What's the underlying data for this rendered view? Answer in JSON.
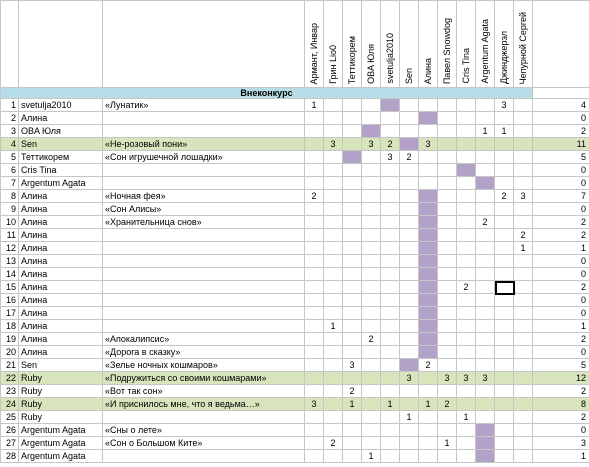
{
  "columns": [
    "Армант, Инвар",
    "Грин Lio0",
    "Теттикорем",
    "OBA Юля",
    "svetulja2010",
    "Sen",
    "Алина",
    "Павел Snowdog",
    "Cris Tina",
    "Argentum Agata",
    "Джинджерэл",
    "Чепурной Сергей"
  ],
  "section": "Внеконкурс",
  "rows": [
    {
      "num": 1,
      "name": "svetulja2010",
      "title": "«Лунатик»",
      "votes": [
        1,
        null,
        null,
        null,
        null,
        null,
        null,
        null,
        null,
        null,
        3,
        null
      ],
      "total": 4,
      "own": 4,
      "green": false
    },
    {
      "num": 2,
      "name": "Алина",
      "title": null,
      "votes": [
        null,
        null,
        null,
        null,
        null,
        null,
        null,
        null,
        null,
        null,
        null,
        null
      ],
      "total": 0,
      "own": 6,
      "green": false
    },
    {
      "num": 3,
      "name": "OBA Юля",
      "title": null,
      "votes": [
        null,
        null,
        null,
        null,
        null,
        null,
        null,
        null,
        null,
        1,
        1,
        null
      ],
      "total": 2,
      "own": 3,
      "green": false
    },
    {
      "num": 4,
      "name": "Sen",
      "title": "«Не-розовый пони»",
      "votes": [
        null,
        3,
        null,
        3,
        2,
        null,
        3,
        null,
        null,
        null,
        null,
        null
      ],
      "total": 11,
      "own": 5,
      "green": true
    },
    {
      "num": 5,
      "name": "Теттикорем",
      "title": "«Сон игрушечной лошадки»",
      "votes": [
        null,
        null,
        null,
        null,
        3,
        2,
        null,
        null,
        null,
        null,
        null,
        null
      ],
      "total": 5,
      "own": 2,
      "green": false
    },
    {
      "num": 6,
      "name": "Cris Tina",
      "title": null,
      "votes": [
        null,
        null,
        null,
        null,
        null,
        null,
        null,
        null,
        null,
        null,
        null,
        null
      ],
      "total": 0,
      "own": 8,
      "green": false
    },
    {
      "num": 7,
      "name": "Argentum Agata",
      "title": null,
      "votes": [
        null,
        null,
        null,
        null,
        null,
        null,
        null,
        null,
        null,
        null,
        null,
        null
      ],
      "total": 0,
      "own": 9,
      "green": false
    },
    {
      "num": 8,
      "name": "Алина",
      "title": "«Ночная фея»",
      "votes": [
        2,
        null,
        null,
        null,
        null,
        null,
        null,
        null,
        null,
        null,
        2,
        3
      ],
      "total": 7,
      "own": 6,
      "green": false
    },
    {
      "num": 9,
      "name": "Алина",
      "title": "«Сон Алисы»",
      "votes": [
        null,
        null,
        null,
        null,
        null,
        null,
        null,
        null,
        null,
        null,
        null,
        null
      ],
      "total": 0,
      "own": 6,
      "green": false
    },
    {
      "num": 10,
      "name": "Алина",
      "title": "«Хранительница снов»",
      "votes": [
        null,
        null,
        null,
        null,
        null,
        null,
        null,
        null,
        null,
        2,
        null,
        null
      ],
      "total": 2,
      "own": 6,
      "green": false
    },
    {
      "num": 11,
      "name": "Алина",
      "title": null,
      "votes": [
        null,
        null,
        null,
        null,
        null,
        null,
        null,
        null,
        null,
        null,
        null,
        2
      ],
      "total": 2,
      "own": 6,
      "green": false
    },
    {
      "num": 12,
      "name": "Алина",
      "title": null,
      "votes": [
        null,
        null,
        null,
        null,
        null,
        null,
        null,
        null,
        null,
        null,
        null,
        1
      ],
      "total": 1,
      "own": 6,
      "green": false
    },
    {
      "num": 13,
      "name": "Алина",
      "title": null,
      "votes": [
        null,
        null,
        null,
        null,
        null,
        null,
        null,
        null,
        null,
        null,
        null,
        null
      ],
      "total": 0,
      "own": 6,
      "green": false
    },
    {
      "num": 14,
      "name": "Алина",
      "title": null,
      "votes": [
        null,
        null,
        null,
        null,
        null,
        null,
        null,
        null,
        null,
        null,
        null,
        null
      ],
      "total": 0,
      "own": 6,
      "green": false
    },
    {
      "num": 15,
      "name": "Алина",
      "title": null,
      "votes": [
        null,
        null,
        null,
        null,
        null,
        null,
        null,
        null,
        2,
        null,
        null,
        null
      ],
      "total": 2,
      "own": 6,
      "green": false
    },
    {
      "num": 16,
      "name": "Алина",
      "title": null,
      "votes": [
        null,
        null,
        null,
        null,
        null,
        null,
        null,
        null,
        null,
        null,
        null,
        null
      ],
      "total": 0,
      "own": 6,
      "green": false
    },
    {
      "num": 17,
      "name": "Алина",
      "title": null,
      "votes": [
        null,
        null,
        null,
        null,
        null,
        null,
        null,
        null,
        null,
        null,
        null,
        null
      ],
      "total": 0,
      "own": 6,
      "green": false
    },
    {
      "num": 18,
      "name": "Алина",
      "title": null,
      "votes": [
        null,
        1,
        null,
        null,
        null,
        null,
        null,
        null,
        null,
        null,
        null,
        null
      ],
      "total": 1,
      "own": 6,
      "green": false
    },
    {
      "num": 19,
      "name": "Алина",
      "title": "«Апокалипсис»",
      "votes": [
        null,
        null,
        null,
        2,
        null,
        null,
        null,
        null,
        null,
        null,
        null,
        null
      ],
      "total": 2,
      "own": 6,
      "green": false
    },
    {
      "num": 20,
      "name": "Алина",
      "title": "«Дорога в сказку»",
      "votes": [
        null,
        null,
        null,
        null,
        null,
        null,
        null,
        null,
        null,
        null,
        null,
        null
      ],
      "total": 0,
      "own": 6,
      "green": false
    },
    {
      "num": 21,
      "name": "Sen",
      "title": "«Зелье ночных кошмаров»",
      "votes": [
        null,
        null,
        3,
        null,
        null,
        null,
        2,
        null,
        null,
        null,
        null,
        null
      ],
      "total": 5,
      "own": 5,
      "green": false
    },
    {
      "num": 22,
      "name": "Ruby",
      "title": "«Подружиться со своими кошмарами»",
      "votes": [
        null,
        null,
        null,
        null,
        null,
        3,
        null,
        3,
        3,
        3,
        null,
        null
      ],
      "total": 12,
      "own": null,
      "green": true
    },
    {
      "num": 23,
      "name": "Ruby",
      "title": "«Вот так сон»",
      "votes": [
        null,
        null,
        2,
        null,
        null,
        null,
        null,
        null,
        null,
        null,
        null,
        null
      ],
      "total": 2,
      "own": null,
      "green": false
    },
    {
      "num": 24,
      "name": "Ruby",
      "title": "«И приснилось мне, что я ведьма…»",
      "votes": [
        3,
        null,
        1,
        null,
        1,
        null,
        1,
        2,
        null,
        null,
        null,
        null
      ],
      "total": 8,
      "own": null,
      "green": true
    },
    {
      "num": 25,
      "name": "Ruby",
      "title": null,
      "votes": [
        null,
        null,
        null,
        null,
        null,
        1,
        null,
        null,
        1,
        null,
        null,
        null
      ],
      "total": 2,
      "own": null,
      "green": false
    },
    {
      "num": 26,
      "name": "Argentum Agata",
      "title": "«Сны о лете»",
      "votes": [
        null,
        null,
        null,
        null,
        null,
        null,
        null,
        null,
        null,
        null,
        null,
        null
      ],
      "total": 0,
      "own": 9,
      "green": false
    },
    {
      "num": 27,
      "name": "Argentum Agata",
      "title": "«Сон о Большом Ките»",
      "votes": [
        null,
        2,
        null,
        null,
        null,
        null,
        null,
        1,
        null,
        null,
        null,
        null
      ],
      "total": 3,
      "own": 9,
      "green": false
    },
    {
      "num": 28,
      "name": "Argentum Agata",
      "title": null,
      "votes": [
        null,
        null,
        null,
        1,
        null,
        null,
        null,
        null,
        null,
        null,
        null,
        null
      ],
      "total": 1,
      "own": 9,
      "green": false
    }
  ]
}
